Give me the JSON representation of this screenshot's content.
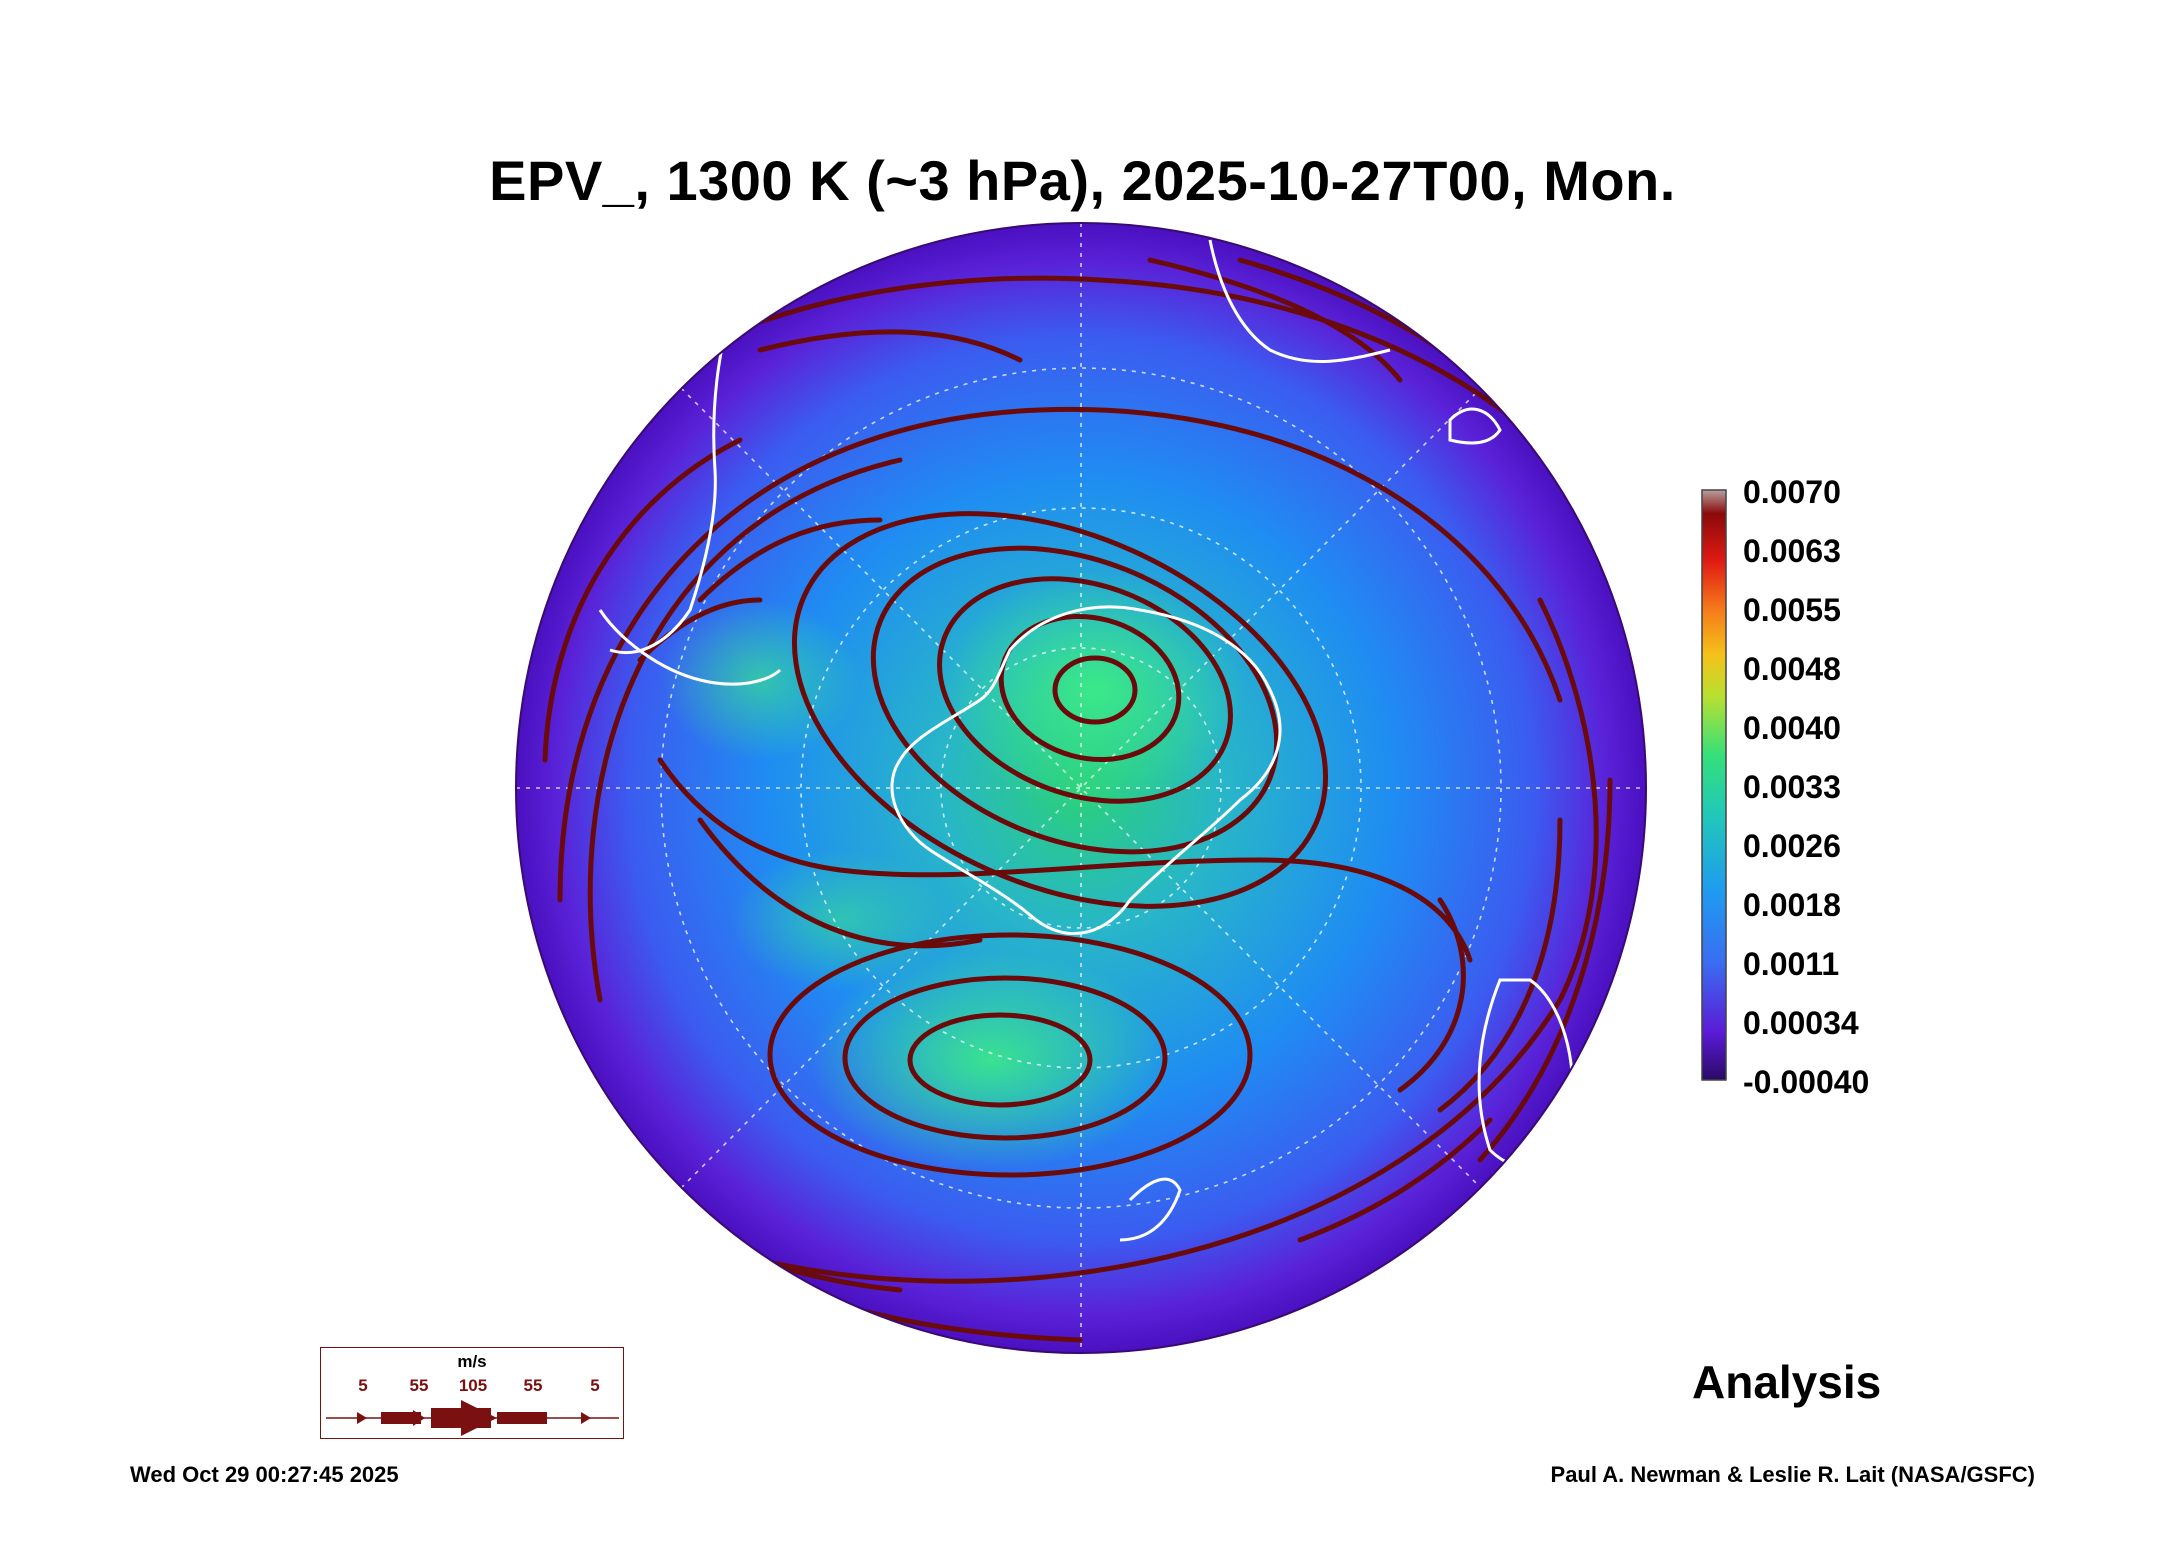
{
  "title": "EPV_, 1300 K (~3 hPa), 2025-10-27T00, Mon.",
  "colorbar": {
    "labels": [
      "0.0070",
      "0.0063",
      "0.0055",
      "0.0048",
      "0.0040",
      "0.0033",
      "0.0026",
      "0.0018",
      "0.0011",
      "0.00034",
      "-0.00040"
    ],
    "min": -0.0004,
    "max": 0.007
  },
  "colors": {
    "streamline": "#6b0a0a",
    "coastline": "#ffffff",
    "field_low": "#5a16d6",
    "field_mid": "#1e8cf0",
    "field_high": "#2fe08a"
  },
  "wind_key": {
    "units": "m/s",
    "labels": [
      "5",
      "55",
      "105",
      "55",
      "5"
    ]
  },
  "product_label": "Analysis",
  "timestamp": "Wed Oct 29 00:27:45 2025",
  "credit": "Paul A. Newman & Leslie R. Lait (NASA/GSFC)"
}
